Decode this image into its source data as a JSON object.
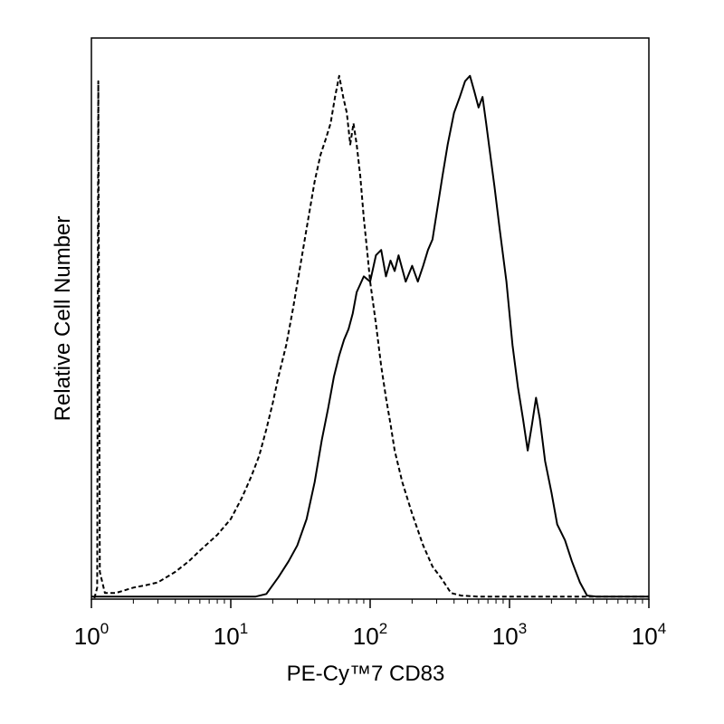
{
  "chart_data": {
    "type": "line",
    "title": "",
    "xlabel": "PE-Cy™7 CD83",
    "ylabel": "Relative Cell Number",
    "x_scale": "log",
    "xlim": [
      1,
      10000
    ],
    "ylim": [
      0,
      1
    ],
    "grid": false,
    "x_ticks": [
      {
        "value": 1,
        "base": "10",
        "exp": "0"
      },
      {
        "value": 10,
        "base": "10",
        "exp": "1"
      },
      {
        "value": 100,
        "base": "10",
        "exp": "2"
      },
      {
        "value": 1000,
        "base": "10",
        "exp": "3"
      },
      {
        "value": 10000,
        "base": "10",
        "exp": "4"
      }
    ],
    "series": [
      {
        "style": "dashed",
        "color": "#000000",
        "points": [
          [
            1.05,
            0.0
          ],
          [
            1.1,
            0.02
          ],
          [
            1.12,
            0.98
          ],
          [
            1.15,
            0.05
          ],
          [
            1.25,
            0.01
          ],
          [
            1.5,
            0.01
          ],
          [
            2.0,
            0.02
          ],
          [
            2.5,
            0.025
          ],
          [
            3.0,
            0.03
          ],
          [
            4.0,
            0.05
          ],
          [
            5.0,
            0.07
          ],
          [
            6.0,
            0.09
          ],
          [
            8.0,
            0.12
          ],
          [
            10.0,
            0.15
          ],
          [
            12.0,
            0.19
          ],
          [
            14.0,
            0.23
          ],
          [
            16.0,
            0.27
          ],
          [
            18.0,
            0.32
          ],
          [
            20.0,
            0.37
          ],
          [
            22.0,
            0.42
          ],
          [
            25.0,
            0.48
          ],
          [
            28.0,
            0.55
          ],
          [
            32.0,
            0.64
          ],
          [
            36.0,
            0.72
          ],
          [
            40.0,
            0.79
          ],
          [
            44.0,
            0.84
          ],
          [
            48.0,
            0.87
          ],
          [
            52.0,
            0.9
          ],
          [
            56.0,
            0.95
          ],
          [
            60.0,
            0.99
          ],
          [
            64.0,
            0.95
          ],
          [
            68.0,
            0.92
          ],
          [
            72.0,
            0.86
          ],
          [
            76.0,
            0.9
          ],
          [
            80.0,
            0.86
          ],
          [
            85.0,
            0.8
          ],
          [
            90.0,
            0.72
          ],
          [
            95.0,
            0.66
          ],
          [
            100.0,
            0.6
          ],
          [
            110.0,
            0.52
          ],
          [
            120.0,
            0.44
          ],
          [
            130.0,
            0.38
          ],
          [
            140.0,
            0.33
          ],
          [
            150.0,
            0.28
          ],
          [
            170.0,
            0.22
          ],
          [
            200.0,
            0.16
          ],
          [
            240.0,
            0.1
          ],
          [
            280.0,
            0.06
          ],
          [
            320.0,
            0.04
          ],
          [
            380.0,
            0.01
          ],
          [
            450.0,
            0.005
          ],
          [
            600.0,
            0.003
          ],
          [
            1000.0,
            0.003
          ],
          [
            2000.0,
            0.003
          ],
          [
            4000.0,
            0.003
          ],
          [
            10000.0,
            0.003
          ]
        ]
      },
      {
        "style": "solid",
        "color": "#000000",
        "points": [
          [
            1.0,
            0.003
          ],
          [
            5.0,
            0.003
          ],
          [
            10.0,
            0.003
          ],
          [
            15.0,
            0.003
          ],
          [
            18.0,
            0.008
          ],
          [
            22.0,
            0.04
          ],
          [
            26.0,
            0.07
          ],
          [
            30.0,
            0.1
          ],
          [
            35.0,
            0.15
          ],
          [
            40.0,
            0.22
          ],
          [
            45.0,
            0.3
          ],
          [
            50.0,
            0.36
          ],
          [
            55.0,
            0.42
          ],
          [
            60.0,
            0.46
          ],
          [
            65.0,
            0.49
          ],
          [
            70.0,
            0.51
          ],
          [
            75.0,
            0.54
          ],
          [
            80.0,
            0.58
          ],
          [
            90.0,
            0.61
          ],
          [
            100.0,
            0.6
          ],
          [
            110.0,
            0.65
          ],
          [
            120.0,
            0.66
          ],
          [
            130.0,
            0.61
          ],
          [
            140.0,
            0.64
          ],
          [
            150.0,
            0.62
          ],
          [
            160.0,
            0.65
          ],
          [
            180.0,
            0.6
          ],
          [
            200.0,
            0.63
          ],
          [
            220.0,
            0.6
          ],
          [
            240.0,
            0.63
          ],
          [
            260.0,
            0.66
          ],
          [
            280.0,
            0.68
          ],
          [
            300.0,
            0.73
          ],
          [
            330.0,
            0.8
          ],
          [
            360.0,
            0.86
          ],
          [
            400.0,
            0.92
          ],
          [
            440.0,
            0.95
          ],
          [
            480.0,
            0.98
          ],
          [
            520.0,
            0.99
          ],
          [
            560.0,
            0.96
          ],
          [
            600.0,
            0.93
          ],
          [
            640.0,
            0.95
          ],
          [
            680.0,
            0.9
          ],
          [
            720.0,
            0.85
          ],
          [
            780.0,
            0.78
          ],
          [
            850.0,
            0.7
          ],
          [
            950.0,
            0.6
          ],
          [
            1050.0,
            0.48
          ],
          [
            1150.0,
            0.4
          ],
          [
            1250.0,
            0.34
          ],
          [
            1350.0,
            0.28
          ],
          [
            1450.0,
            0.33
          ],
          [
            1550.0,
            0.38
          ],
          [
            1650.0,
            0.34
          ],
          [
            1800.0,
            0.26
          ],
          [
            2000.0,
            0.2
          ],
          [
            2200.0,
            0.14
          ],
          [
            2500.0,
            0.11
          ],
          [
            2800.0,
            0.07
          ],
          [
            3200.0,
            0.03
          ],
          [
            3600.0,
            0.005
          ],
          [
            4200.0,
            0.003
          ],
          [
            6000.0,
            0.003
          ],
          [
            10000.0,
            0.003
          ]
        ]
      }
    ]
  }
}
